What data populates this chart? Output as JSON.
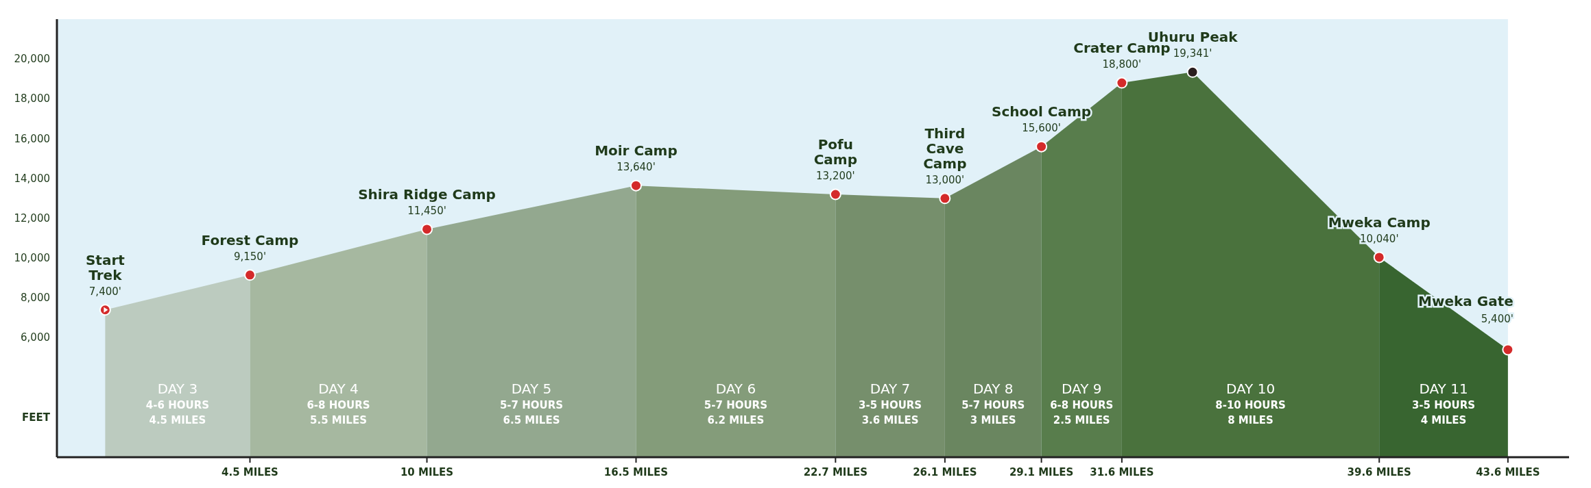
{
  "chart_data": {
    "type": "area",
    "ylabel": "FEET",
    "xlim": [
      -1.5,
      45.5
    ],
    "ylim": [
      0,
      22000
    ],
    "yticks": [
      {
        "value": 6000,
        "label": "6,000"
      },
      {
        "value": 8000,
        "label": "8,000"
      },
      {
        "value": 10000,
        "label": "10,000"
      },
      {
        "value": 12000,
        "label": "12,000"
      },
      {
        "value": 14000,
        "label": "14,000"
      },
      {
        "value": 16000,
        "label": "16,000"
      },
      {
        "value": 18000,
        "label": "18,000"
      },
      {
        "value": 20000,
        "label": "20,000"
      }
    ],
    "xticks": [
      {
        "value": 4.5,
        "label": "4.5 MILES"
      },
      {
        "value": 10,
        "label": "10 MILES"
      },
      {
        "value": 16.5,
        "label": "16.5 MILES"
      },
      {
        "value": 22.7,
        "label": "22.7 MILES"
      },
      {
        "value": 26.1,
        "label": "26.1 MILES"
      },
      {
        "value": 29.1,
        "label": "29.1 MILES"
      },
      {
        "value": 31.6,
        "label": "31.6 MILES"
      },
      {
        "value": 39.6,
        "label": "39.6 MILES"
      },
      {
        "value": 43.6,
        "label": "43.6 MILES"
      }
    ],
    "grid": false,
    "series": [
      {
        "name": "DAY 3\n4-6 HOURS\n4.5 MILES",
        "color": "#bccbbf",
        "x": [
          0,
          4.5
        ],
        "values": [
          7400,
          9150
        ]
      },
      {
        "name": "DAY 4\n6-8 HOURS\n5.5 MILES",
        "color": "#a6b8a0",
        "x": [
          4.5,
          10
        ],
        "values": [
          9150,
          11450
        ]
      },
      {
        "name": "DAY 5\n5-7 HOURS\n6.5 MILES",
        "color": "#93a88f",
        "x": [
          10,
          16.5
        ],
        "values": [
          11450,
          13640
        ]
      },
      {
        "name": "DAY 6\n5-7 HOURS\n6.2 MILES",
        "color": "#849c7a",
        "x": [
          16.5,
          22.7
        ],
        "values": [
          13640,
          13200
        ]
      },
      {
        "name": "DAY 7\n3-5 HOURS\n3.6 MILES",
        "color": "#768f6c",
        "x": [
          22.7,
          26.1
        ],
        "values": [
          13200,
          13000
        ]
      },
      {
        "name": "DAY 8\n5-7 HOURS\n3 MILES",
        "color": "#6a8660",
        "x": [
          26.1,
          29.1
        ],
        "values": [
          13000,
          15600
        ]
      },
      {
        "name": "DAY 9\n6-8 HOURS\n2.5 MILES",
        "color": "#587d4c",
        "x": [
          29.1,
          31.6
        ],
        "values": [
          15600,
          18800
        ]
      },
      {
        "name": "DAY 10\n8-10 HOURS\n8 MILES",
        "color": "#4a723d",
        "x": [
          31.6,
          33.8,
          39.6
        ],
        "values": [
          18800,
          19341,
          10040
        ]
      },
      {
        "name": "DAY 11\n3-5 HOURS\n4 MILES",
        "color": "#386530",
        "x": [
          39.6,
          43.6
        ],
        "values": [
          10040,
          5400
        ]
      },
      {
        "type": "scatter",
        "marker": "circle",
        "x": [
          0,
          4.5,
          10,
          16.5,
          22.7,
          26.1,
          29.1,
          31.6,
          33.8,
          39.6,
          43.6
        ],
        "values": [
          7400,
          9150,
          11450,
          13640,
          13200,
          13000,
          15600,
          18800,
          19341,
          10040,
          5400
        ],
        "colors": [
          "#d42a2a",
          "#d42a2a",
          "#d42a2a",
          "#d42a2a",
          "#d42a2a",
          "#d42a2a",
          "#d42a2a",
          "#d42a2a",
          "#2a1e1e",
          "#d42a2a",
          "#d42a2a"
        ],
        "value_labels": [
          "7,400'",
          "9,150'",
          "11,450'",
          "13,640'",
          "13,200'",
          "13,000'",
          "15,600'",
          "18,800'",
          "19,341'",
          "10,040'",
          "5,400'"
        ]
      }
    ],
    "annotations": [
      {
        "text": "Start\nTrek",
        "x": 0,
        "y": 7400
      },
      {
        "text": "Forest Camp",
        "x": 4.5,
        "y": 9150
      },
      {
        "text": "Shira Ridge Camp",
        "x": 10,
        "y": 11450
      },
      {
        "text": "Moir Camp",
        "x": 16.5,
        "y": 13640
      },
      {
        "text": "Pofu\nCamp",
        "x": 22.7,
        "y": 13200
      },
      {
        "text": "Third\nCave\nCamp",
        "x": 26.1,
        "y": 13000
      },
      {
        "text": "School Camp",
        "x": 29.1,
        "y": 15600
      },
      {
        "text": "Crater Camp",
        "x": 31.6,
        "y": 18800
      },
      {
        "text": "Uhuru Peak",
        "x": 33.8,
        "y": 19341
      },
      {
        "text": "Mweka Camp",
        "x": 39.6,
        "y": 10040
      },
      {
        "text": "Mweka Gate",
        "x": 43.6,
        "y": 5400
      }
    ]
  }
}
